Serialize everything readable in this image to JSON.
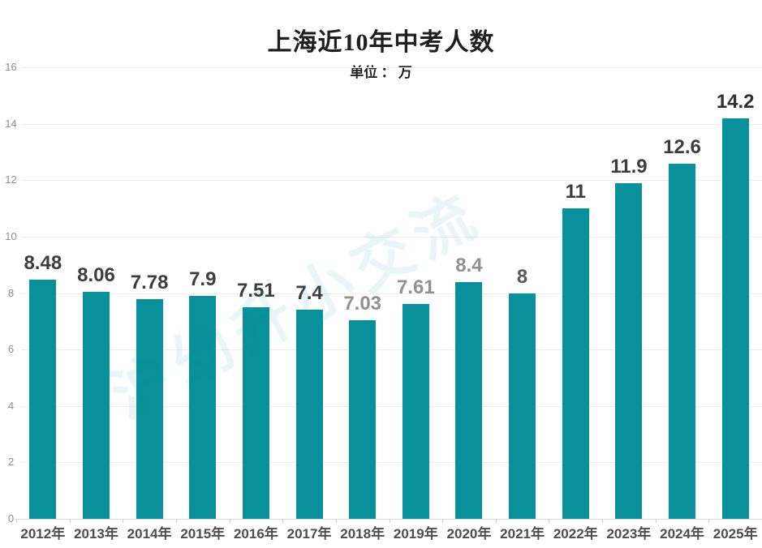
{
  "page": {
    "background": "#ffffff"
  },
  "header": {
    "title": "上海近10年中考人数",
    "subtitle": "单位 ： 万"
  },
  "watermark": {
    "text": "沪幼升小交流",
    "color": "rgba(8,145,154,0.09)"
  },
  "chart_data": {
    "type": "bar",
    "title": "上海近10年中考人数",
    "subtitle": "单位 ： 万",
    "unit": "万",
    "categories": [
      "2012年",
      "2013年",
      "2014年",
      "2015年",
      "2016年",
      "2017年",
      "2018年",
      "2019年",
      "2020年",
      "2021年",
      "2022年",
      "2023年",
      "2024年",
      "2025年"
    ],
    "values": [
      8.48,
      8.06,
      7.78,
      7.9,
      7.51,
      7.4,
      7.03,
      7.61,
      8.4,
      8,
      11,
      11.9,
      12.6,
      14.2
    ],
    "value_labels": [
      "8.48",
      "8.06",
      "7.78",
      "7.9",
      "7.51",
      "7.4",
      "7.03",
      "7.61",
      "8.4",
      "8",
      "11",
      "11.9",
      "12.6",
      "14.2"
    ],
    "value_label_colors": [
      "#3d3d3d",
      "#3d3d3d",
      "#3d3d3d",
      "#3d3d3d",
      "#3d3d3d",
      "#3d3d3d",
      "#919191",
      "#919191",
      "#919191",
      "#595959",
      "#3d3d3d",
      "#3d3d3d",
      "#3d3d3d",
      "#303030"
    ],
    "bar_color": "#08919a",
    "ylim": [
      0,
      16
    ],
    "yticks": [
      0,
      2,
      4,
      6,
      8,
      10,
      12,
      14,
      16
    ],
    "grid": true,
    "legend": "none",
    "gridline_color": "#ededed",
    "axis_line_color": "#d9d9d9",
    "ytick_label_color": "#8c8c8c",
    "xtick_label_color": "#4d4d4d"
  }
}
